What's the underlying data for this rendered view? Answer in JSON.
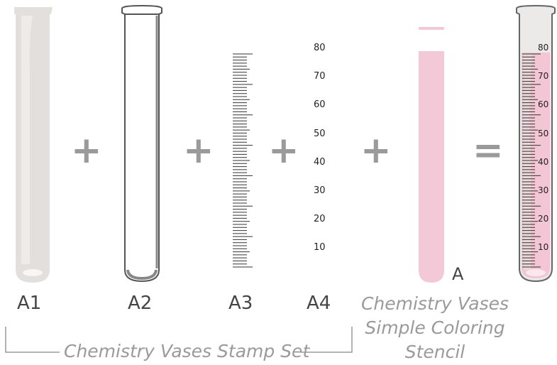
{
  "parts": [
    {
      "code": "A1"
    },
    {
      "code": "A2"
    },
    {
      "code": "A3"
    },
    {
      "code": "A4"
    }
  ],
  "operators": {
    "plus": "+",
    "equals": "="
  },
  "scale_numbers": [
    "80",
    "70",
    "60",
    "50",
    "40",
    "30",
    "20",
    "10"
  ],
  "stencil": {
    "letter": "A",
    "caption_lines": [
      "Chemistry Vases",
      "Simple Coloring",
      "Stencil"
    ]
  },
  "bracket_caption": "Chemistry Vases Stamp Set",
  "colors": {
    "glass": "#e3dfdc",
    "outline": "#555555",
    "pink": "#f3c9d8",
    "gray": "#9a9a9a",
    "text": "#454545"
  }
}
